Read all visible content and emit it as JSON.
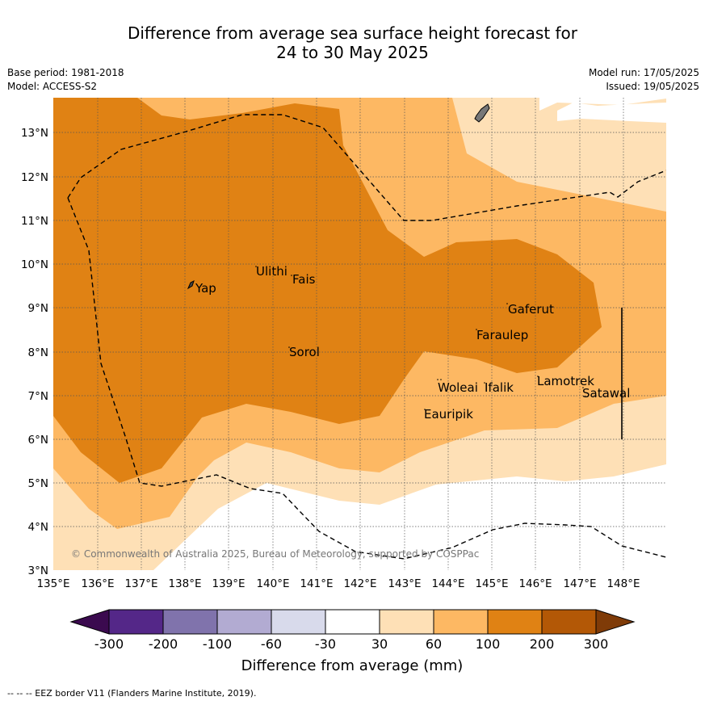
{
  "title_line1": "Difference from average sea surface height forecast for",
  "title_line2": "24 to 30 May 2025",
  "base_period": "Base period: 1981-2018",
  "model": "Model: ACCESS-S2",
  "model_run": "Model run: 17/05/2025",
  "issued": "Issued: 19/05/2025",
  "copyright": "© Commonwealth of Australia 2025, Bureau of Meteorology, supported by COSPPac",
  "footer": "--  --  -- EEZ border V11 (Flanders Marine Institute, 2019).",
  "x_ticks": [
    "135°E",
    "136°E",
    "137°E",
    "138°E",
    "139°E",
    "140°E",
    "141°E",
    "142°E",
    "143°E",
    "144°E",
    "145°E",
    "146°E",
    "147°E",
    "148°E"
  ],
  "y_ticks": [
    "13°N",
    "12°N",
    "11°N",
    "10°N",
    "9°N",
    "8°N",
    "7°N",
    "6°N",
    "5°N",
    "4°N",
    "3°N"
  ],
  "places": [
    "Yap",
    "Ulithi",
    "Fais",
    "Sorol",
    "Gaferut",
    "Faraulep",
    "Woleai",
    "Ifalik",
    "Lamotrek",
    "Satawal",
    "Eauripik"
  ],
  "colorbar": {
    "label": "Difference from average (mm)",
    "ticks": [
      "-300",
      "-200",
      "-100",
      "-60",
      "-30",
      "30",
      "60",
      "100",
      "200",
      "300"
    ],
    "colors": [
      "#3b0a4f",
      "#542788",
      "#8073ac",
      "#b2abd2",
      "#d8daeb",
      "#ffffff",
      "#fee0b6",
      "#fdb863",
      "#e08214",
      "#b35806",
      "#7f3b08"
    ]
  }
}
